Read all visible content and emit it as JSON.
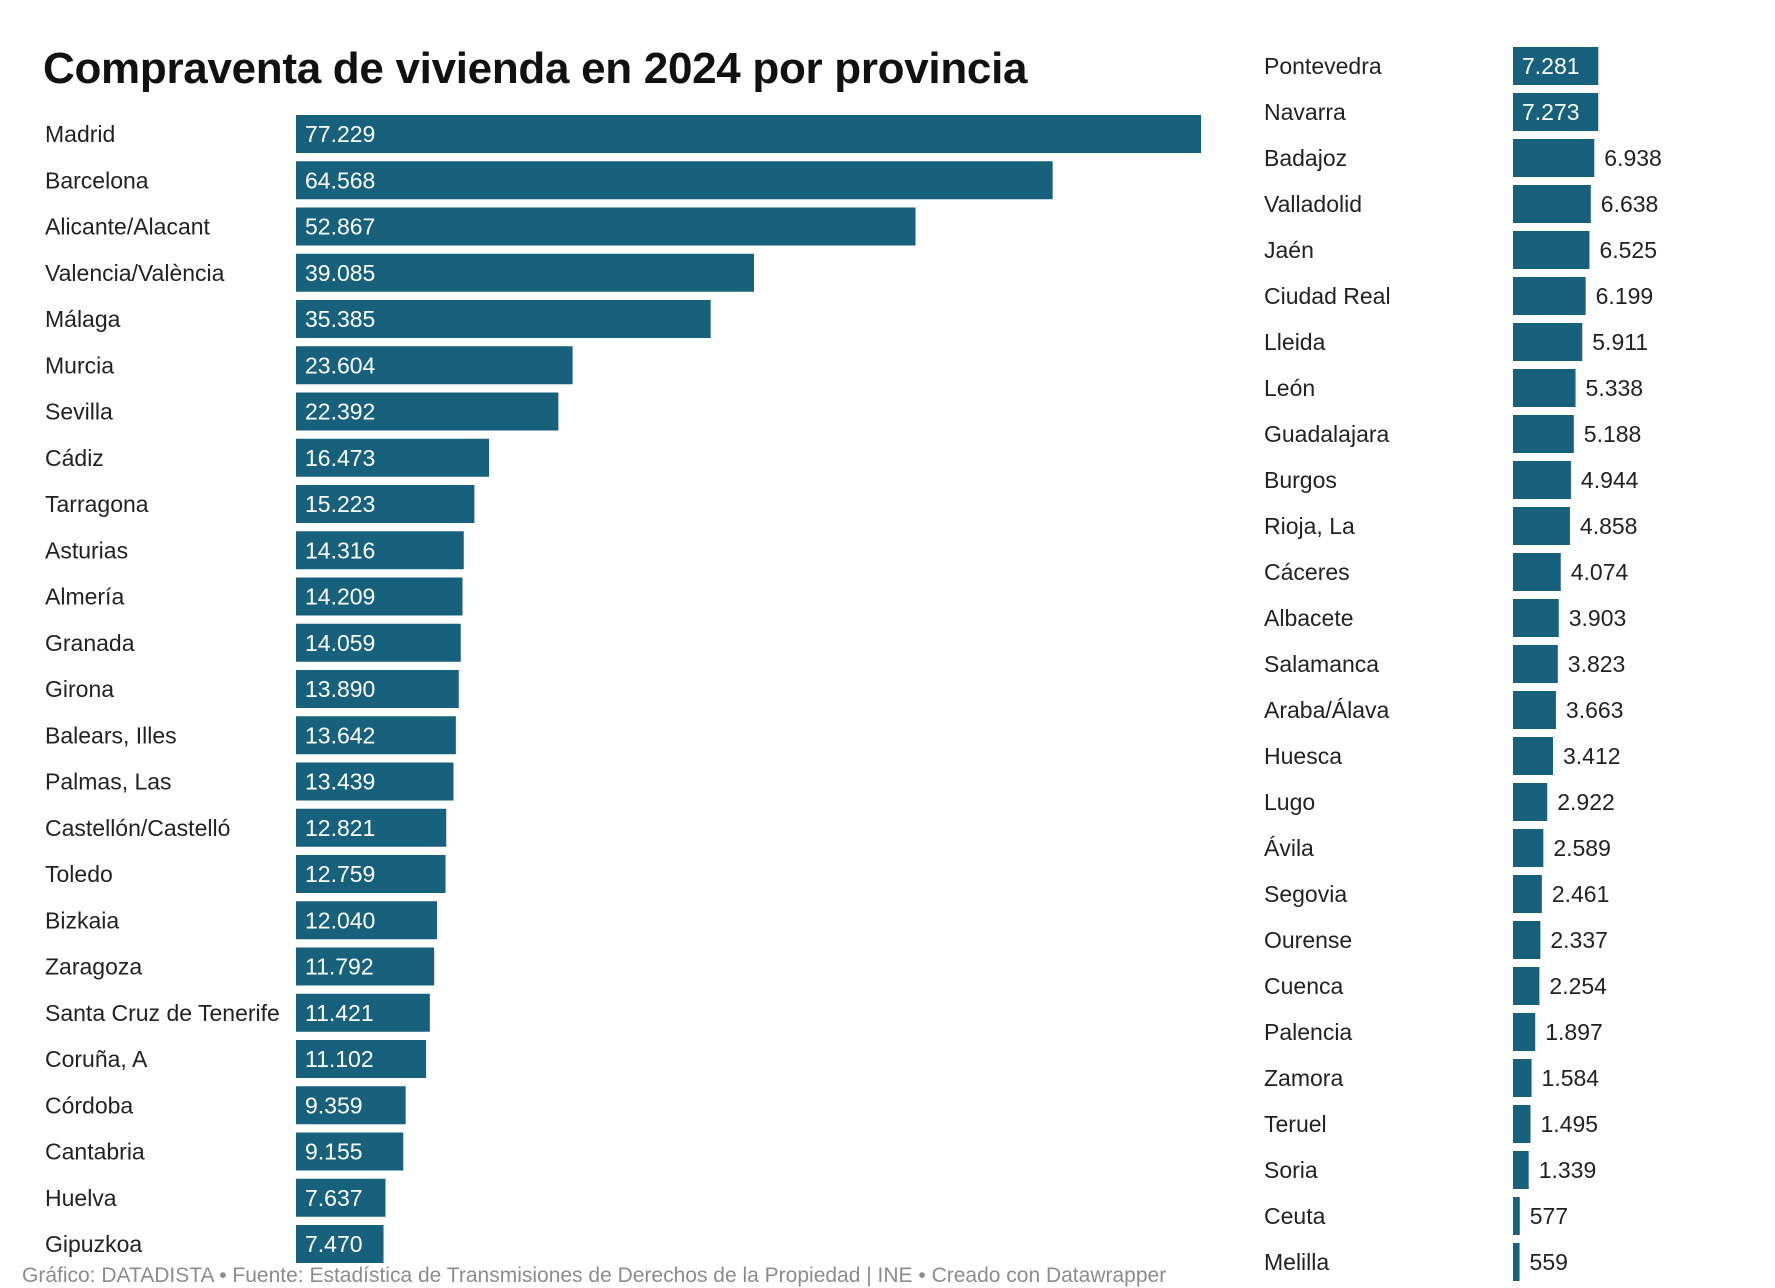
{
  "chart_data": {
    "type": "bar",
    "orientation": "horizontal",
    "title": "Compraventa de vivienda en 2024 por provincia",
    "footer": "Gráfico: DATADISTA • Fuente: Estadística de Transmisiones de Derechos de la Propiedad | INE • Creado con Datawrapper",
    "bar_color": "#17617c",
    "label_inside_color": "#ffffff",
    "label_outside_color": "#222222",
    "panels": [
      {
        "categories": [
          "Madrid",
          "Barcelona",
          "Alicante/Alacant",
          "Valencia/València",
          "Málaga",
          "Murcia",
          "Sevilla",
          "Cádiz",
          "Tarragona",
          "Asturias",
          "Almería",
          "Granada",
          "Girona",
          "Balears, Illes",
          "Palmas, Las",
          "Castellón/Castelló",
          "Toledo",
          "Bizkaia",
          "Zaragoza",
          "Santa Cruz de Tenerife",
          "Coruña, A",
          "Córdoba",
          "Cantabria",
          "Huelva",
          "Gipuzkoa"
        ],
        "values": [
          77229,
          64568,
          52867,
          39085,
          35385,
          23604,
          22392,
          16473,
          15223,
          14316,
          14209,
          14059,
          13890,
          13642,
          13439,
          12821,
          12759,
          12040,
          11792,
          11421,
          11102,
          9359,
          9155,
          7637,
          7470
        ],
        "labels": [
          "77.229",
          "64.568",
          "52.867",
          "39.085",
          "35.385",
          "23.604",
          "22.392",
          "16.473",
          "15.223",
          "14.316",
          "14.209",
          "14.059",
          "13.890",
          "13.642",
          "13.439",
          "12.821",
          "12.759",
          "12.040",
          "11.792",
          "11.421",
          "11.102",
          "9.359",
          "9.155",
          "7.637",
          "7.470"
        ]
      },
      {
        "categories": [
          "Pontevedra",
          "Navarra",
          "Badajoz",
          "Valladolid",
          "Jaén",
          "Ciudad Real",
          "Lleida",
          "León",
          "Guadalajara",
          "Burgos",
          "Rioja, La",
          "Cáceres",
          "Albacete",
          "Salamanca",
          "Araba/Álava",
          "Huesca",
          "Lugo",
          "Ávila",
          "Segovia",
          "Ourense",
          "Cuenca",
          "Palencia",
          "Zamora",
          "Teruel",
          "Soria",
          "Ceuta",
          "Melilla"
        ],
        "values": [
          7281,
          7273,
          6938,
          6638,
          6525,
          6199,
          5911,
          5338,
          5188,
          4944,
          4858,
          4074,
          3903,
          3823,
          3663,
          3412,
          2922,
          2589,
          2461,
          2337,
          2254,
          1897,
          1584,
          1495,
          1339,
          577,
          559
        ],
        "labels": [
          "7.281",
          "7.273",
          "6.938",
          "6.638",
          "6.525",
          "6.199",
          "5.911",
          "5.338",
          "5.188",
          "4.944",
          "4.858",
          "4.074",
          "3.903",
          "3.823",
          "3.663",
          "3.412",
          "2.922",
          "2.589",
          "2.461",
          "2.337",
          "2.254",
          "1.897",
          "1.584",
          "1.495",
          "1.339",
          "577",
          "559"
        ]
      }
    ]
  }
}
